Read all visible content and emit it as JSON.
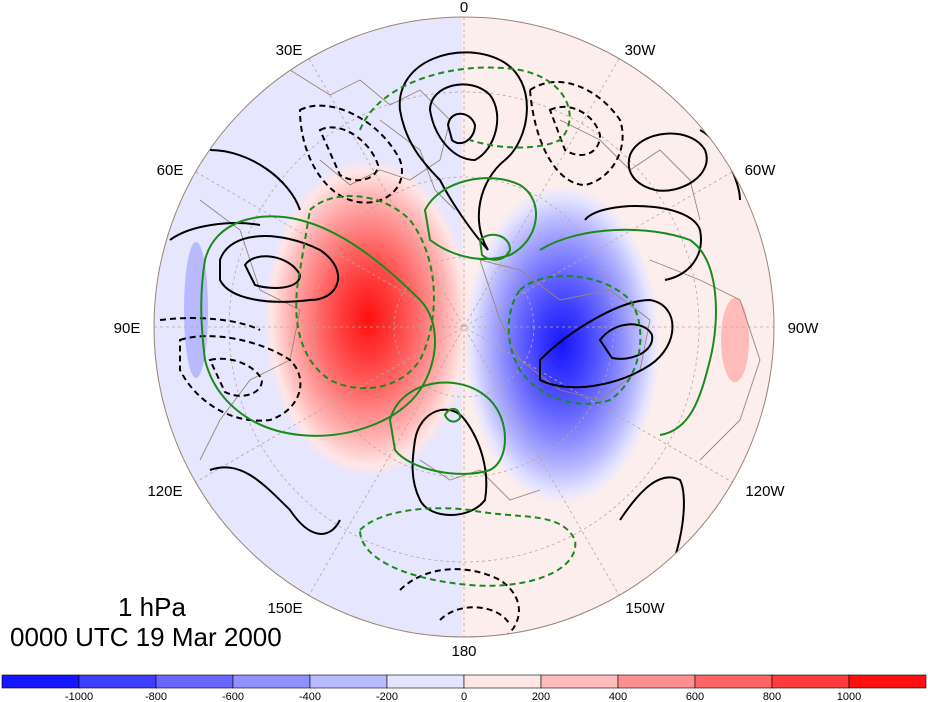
{
  "map": {
    "projection": "polar-stereographic",
    "hemisphere": "north",
    "coastlines": true,
    "grid_dashed": true,
    "longitude_labels": [
      {
        "name": "lon-0",
        "text": "0",
        "lon": 0
      },
      {
        "name": "lon-30w",
        "text": "30W",
        "lon": -30
      },
      {
        "name": "lon-60w",
        "text": "60W",
        "lon": -60
      },
      {
        "name": "lon-90w",
        "text": "90W",
        "lon": -90
      },
      {
        "name": "lon-120w",
        "text": "120W",
        "lon": -120
      },
      {
        "name": "lon-150w",
        "text": "150W",
        "lon": -150
      },
      {
        "name": "lon-180",
        "text": "180",
        "lon": 180
      },
      {
        "name": "lon-150e",
        "text": "150E",
        "lon": 150
      },
      {
        "name": "lon-120e",
        "text": "120E",
        "lon": 120
      },
      {
        "name": "lon-90e",
        "text": "90E",
        "lon": 90
      },
      {
        "name": "lon-60e",
        "text": "60E",
        "lon": 60
      },
      {
        "name": "lon-30e",
        "text": "30E",
        "lon": 30
      }
    ],
    "colors": {
      "contour_black": "#000000",
      "contour_green": "#1a8a1a",
      "coastline": "#9b8470",
      "grid": "#b8a898"
    }
  },
  "level_label": "1 hPa",
  "datetime_label": "0000 UTC 19 Mar 2000",
  "colorbar": {
    "colors": [
      "#1515ff",
      "#3e3eff",
      "#6767ff",
      "#9090ff",
      "#b9b9ff",
      "#e4e4ff",
      "#ffe6e6",
      "#ffbaba",
      "#ff8f8f",
      "#ff6565",
      "#ff3b3b",
      "#ff1010"
    ],
    "ticks": [
      "-1000",
      "-800",
      "-600",
      "-400",
      "-200",
      "0",
      "200",
      "400",
      "600",
      "800",
      "1000"
    ]
  }
}
